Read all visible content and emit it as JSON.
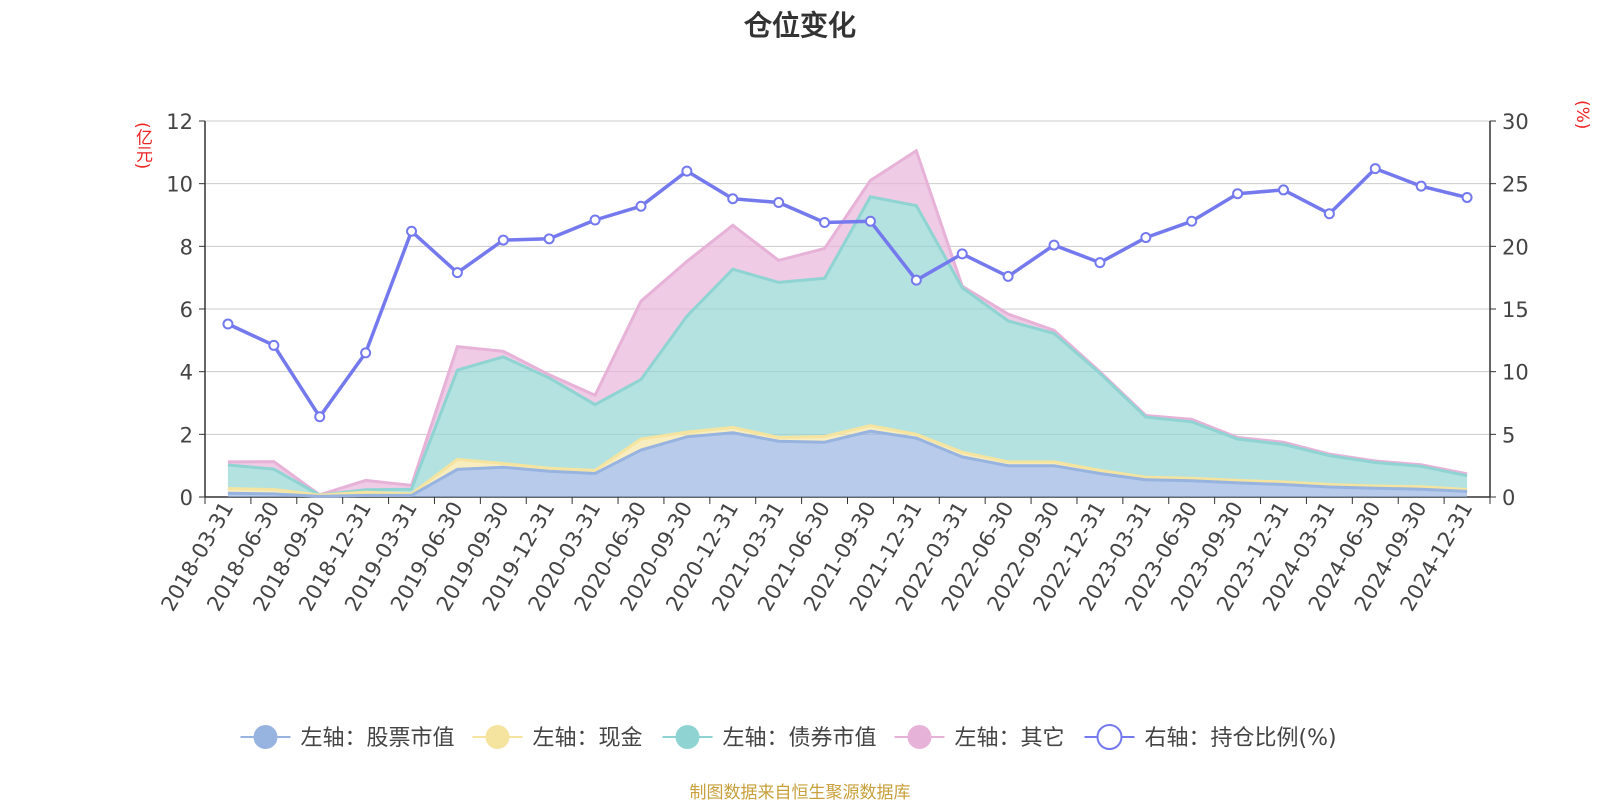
{
  "chart_data": {
    "type": "area",
    "title": "仓位变化",
    "source_note": "制图数据来自恒生聚源数据库",
    "left_axis_unit": "(亿元)",
    "right_axis_unit": "(%)",
    "left_ylim": [
      0,
      12
    ],
    "left_ticks": [
      "0",
      "2",
      "4",
      "6",
      "8",
      "10",
      "12"
    ],
    "right_ylim": [
      0,
      30
    ],
    "right_ticks": [
      "0",
      "5",
      "10",
      "15",
      "20",
      "25",
      "30"
    ],
    "grid": true,
    "legend_position": "bottom",
    "categories": [
      "2018-03-31",
      "2018-06-30",
      "2018-09-30",
      "2018-12-31",
      "2019-03-31",
      "2019-06-30",
      "2019-09-30",
      "2019-12-31",
      "2020-03-31",
      "2020-06-30",
      "2020-09-30",
      "2020-12-31",
      "2021-03-31",
      "2021-06-30",
      "2021-09-30",
      "2021-12-31",
      "2022-03-31",
      "2022-06-30",
      "2022-09-30",
      "2022-12-31",
      "2023-03-31",
      "2023-06-30",
      "2023-09-30",
      "2023-12-31",
      "2024-03-31",
      "2024-06-30",
      "2024-09-30",
      "2024-12-31"
    ],
    "series": [
      {
        "name": "左轴：股票市值",
        "axis": "left",
        "kind": "stacked-area",
        "color": "#97b3e0",
        "values": [
          0.12,
          0.1,
          0.02,
          0.05,
          0.05,
          0.88,
          0.95,
          0.82,
          0.75,
          1.5,
          1.92,
          2.05,
          1.78,
          1.75,
          2.1,
          1.88,
          1.28,
          1.0,
          1.0,
          0.75,
          0.55,
          0.52,
          0.45,
          0.4,
          0.32,
          0.28,
          0.25,
          0.18
        ]
      },
      {
        "name": "左轴：现金",
        "axis": "left",
        "kind": "stacked-area",
        "color": "#f5e4a0",
        "values": [
          0.15,
          0.14,
          0.04,
          0.1,
          0.05,
          0.32,
          0.12,
          0.1,
          0.1,
          0.35,
          0.15,
          0.17,
          0.12,
          0.18,
          0.18,
          0.12,
          0.15,
          0.12,
          0.12,
          0.1,
          0.08,
          0.08,
          0.08,
          0.08,
          0.08,
          0.07,
          0.08,
          0.06
        ]
      },
      {
        "name": "左轴：债券市值",
        "axis": "left",
        "kind": "stacked-area",
        "color": "#8fd4d2",
        "values": [
          0.75,
          0.65,
          0.0,
          0.08,
          0.15,
          2.85,
          3.4,
          2.88,
          2.1,
          1.9,
          3.7,
          5.05,
          4.95,
          5.05,
          7.3,
          7.3,
          5.25,
          4.5,
          4.1,
          3.1,
          1.92,
          1.8,
          1.32,
          1.2,
          0.92,
          0.75,
          0.65,
          0.44
        ]
      },
      {
        "name": "左轴：其它",
        "axis": "left",
        "kind": "stacked-area",
        "color": "#e7b2d8",
        "values": [
          0.1,
          0.24,
          0.01,
          0.3,
          0.12,
          0.75,
          0.18,
          0.1,
          0.3,
          2.5,
          1.75,
          1.4,
          0.7,
          0.95,
          0.52,
          1.75,
          0.05,
          0.22,
          0.1,
          0.05,
          0.05,
          0.08,
          0.05,
          0.07,
          0.05,
          0.05,
          0.05,
          0.06
        ]
      },
      {
        "name": "右轴：持仓比例(%)",
        "axis": "right",
        "kind": "line",
        "color": "#7479ee",
        "values": [
          13.8,
          12.1,
          6.4,
          11.5,
          21.2,
          17.9,
          20.5,
          20.6,
          22.1,
          23.2,
          26.0,
          23.8,
          23.5,
          21.9,
          22.0,
          17.3,
          19.4,
          17.6,
          20.1,
          18.7,
          20.7,
          22.0,
          24.2,
          24.5,
          22.6,
          26.2,
          24.8,
          23.9
        ]
      }
    ]
  }
}
